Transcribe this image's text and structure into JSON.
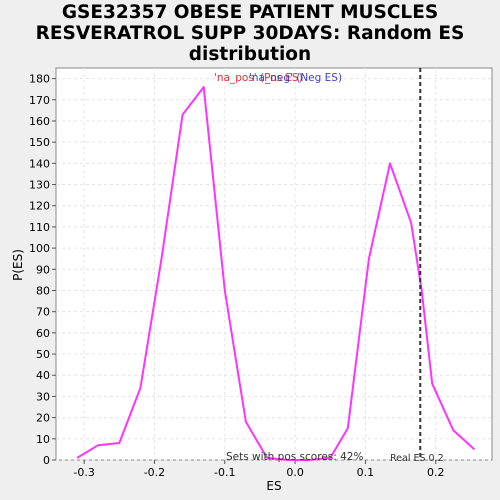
{
  "chart_data": {
    "type": "line",
    "title_lines": [
      "GSE32357 OBESE PATIENT MUSCLES",
      "RESVERATROL SUPP 30DAYS: Random ES",
      "distribution"
    ],
    "xlabel": "ES",
    "ylabel": "P(ES)",
    "xlim": [
      -0.34,
      0.28
    ],
    "ylim": [
      0,
      185
    ],
    "x_ticks": [
      -0.3,
      -0.2,
      -0.1,
      0.0,
      0.1,
      0.2
    ],
    "x_tick_labels": [
      "-0.3",
      "-0.2",
      "-0.1",
      "0.0",
      "0.1",
      "0.2"
    ],
    "y_ticks": [
      0,
      10,
      20,
      30,
      40,
      50,
      60,
      70,
      80,
      90,
      100,
      110,
      120,
      130,
      140,
      150,
      160,
      170,
      180
    ],
    "grid": true,
    "legend": {
      "placement": "top-center",
      "entries": [
        "'na_pos' (Pos ES)",
        "'na_neg' (Neg ES)"
      ]
    },
    "series": [
      {
        "color": "#ff33ff",
        "x": [
          -0.31,
          -0.28,
          -0.25,
          -0.22,
          -0.19,
          -0.16,
          -0.13,
          -0.1,
          -0.07,
          -0.04,
          -0.01,
          0.02,
          0.05,
          0.075,
          0.105,
          0.135,
          0.165,
          0.18,
          0.195,
          0.225,
          0.255
        ],
        "y": [
          1,
          7,
          8,
          34,
          95,
          163,
          176,
          80,
          18,
          1,
          0,
          0,
          1,
          15,
          95,
          140,
          112,
          80,
          36,
          14,
          5
        ]
      }
    ],
    "annotations": {
      "real_es_value": 0.178,
      "real_es_label": "Real ES 0.2",
      "pos_scores_text": "Sets with pos scores: 42%"
    }
  }
}
